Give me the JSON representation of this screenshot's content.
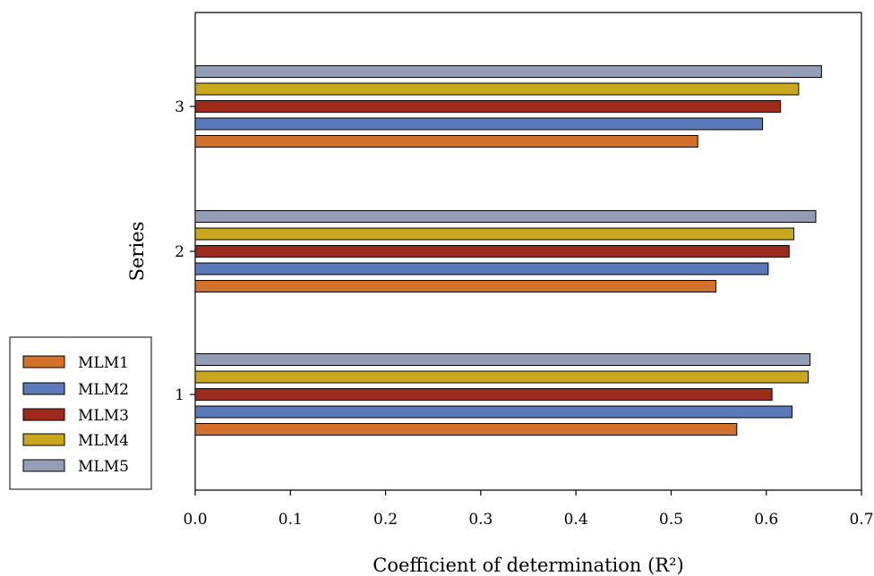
{
  "chart_data": {
    "type": "bar",
    "orientation": "horizontal",
    "categories": [
      "1",
      "2",
      "3"
    ],
    "series": [
      {
        "name": "MLM1",
        "color": "#D2702C",
        "values": [
          0.569,
          0.547,
          0.528
        ]
      },
      {
        "name": "MLM2",
        "color": "#5A78BA",
        "values": [
          0.627,
          0.602,
          0.596
        ]
      },
      {
        "name": "MLM3",
        "color": "#9E2A1C",
        "values": [
          0.606,
          0.624,
          0.615
        ]
      },
      {
        "name": "MLM4",
        "color": "#C9A81E",
        "values": [
          0.644,
          0.629,
          0.634
        ]
      },
      {
        "name": "MLM5",
        "color": "#939EB6",
        "values": [
          0.646,
          0.652,
          0.658
        ]
      }
    ],
    "xlabel": "Coefficient of determination (R²)",
    "ylabel": "Series",
    "xlim": [
      0.0,
      0.7
    ],
    "xticks": [
      "0.0",
      "0.1",
      "0.2",
      "0.3",
      "0.4",
      "0.5",
      "0.6",
      "0.7"
    ],
    "grid": false,
    "legend_position": "bottom-left"
  }
}
